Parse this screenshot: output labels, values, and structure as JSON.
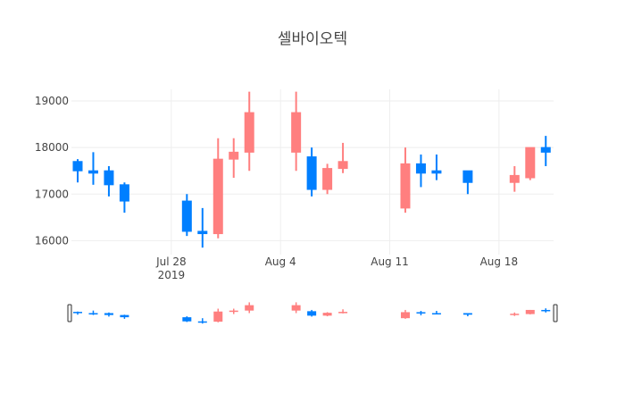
{
  "chart_data": {
    "type": "candlestick",
    "title": "셀바이오텍",
    "colors": {
      "increasing": "#FF7F7F",
      "decreasing": "#007FFF"
    },
    "ylim": [
      15700,
      19250
    ],
    "yticks": [
      16000,
      17000,
      18000,
      19000
    ],
    "yticklabels": [
      "16000",
      "17000",
      "18000",
      "19000"
    ],
    "xticks": [
      {
        "date": "2019-07-28",
        "label": "Jul 28",
        "sublabel": "2019"
      },
      {
        "date": "2019-08-04",
        "label": "Aug 4",
        "sublabel": ""
      },
      {
        "date": "2019-08-11",
        "label": "Aug 11",
        "sublabel": ""
      },
      {
        "date": "2019-08-18",
        "label": "Aug 18",
        "sublabel": ""
      }
    ],
    "grid": true,
    "range_slider": true,
    "series": [
      {
        "date": "2019-07-22",
        "open": 17700,
        "high": 17750,
        "low": 17250,
        "close": 17500
      },
      {
        "date": "2019-07-23",
        "open": 17500,
        "high": 17900,
        "low": 17200,
        "close": 17450
      },
      {
        "date": "2019-07-24",
        "open": 17500,
        "high": 17600,
        "low": 16950,
        "close": 17200
      },
      {
        "date": "2019-07-25",
        "open": 17200,
        "high": 17250,
        "low": 16600,
        "close": 16850
      },
      {
        "date": "2019-07-29",
        "open": 16850,
        "high": 17000,
        "low": 16100,
        "close": 16200
      },
      {
        "date": "2019-07-30",
        "open": 16200,
        "high": 16700,
        "low": 15850,
        "close": 16150
      },
      {
        "date": "2019-07-31",
        "open": 16150,
        "high": 18200,
        "low": 16050,
        "close": 17750
      },
      {
        "date": "2019-08-01",
        "open": 17750,
        "high": 18200,
        "low": 17350,
        "close": 17900
      },
      {
        "date": "2019-08-02",
        "open": 17900,
        "high": 19200,
        "low": 17500,
        "close": 18750
      },
      {
        "date": "2019-08-05",
        "open": 17900,
        "high": 19200,
        "low": 17500,
        "close": 18750
      },
      {
        "date": "2019-08-06",
        "open": 17800,
        "high": 18000,
        "low": 16950,
        "close": 17100
      },
      {
        "date": "2019-08-07",
        "open": 17100,
        "high": 17650,
        "low": 17000,
        "close": 17550
      },
      {
        "date": "2019-08-08",
        "open": 17550,
        "high": 18100,
        "low": 17450,
        "close": 17700
      },
      {
        "date": "2019-08-12",
        "open": 16700,
        "high": 18000,
        "low": 16600,
        "close": 17650
      },
      {
        "date": "2019-08-13",
        "open": 17650,
        "high": 17850,
        "low": 17150,
        "close": 17450
      },
      {
        "date": "2019-08-14",
        "open": 17500,
        "high": 17850,
        "low": 17300,
        "close": 17450
      },
      {
        "date": "2019-08-16",
        "open": 17500,
        "high": 17500,
        "low": 17000,
        "close": 17250
      },
      {
        "date": "2019-08-19",
        "open": 17250,
        "high": 17600,
        "low": 17050,
        "close": 17400
      },
      {
        "date": "2019-08-20",
        "open": 17350,
        "high": 18000,
        "low": 17300,
        "close": 18000
      },
      {
        "date": "2019-08-21",
        "open": 18000,
        "high": 18250,
        "low": 17600,
        "close": 17900
      }
    ]
  }
}
